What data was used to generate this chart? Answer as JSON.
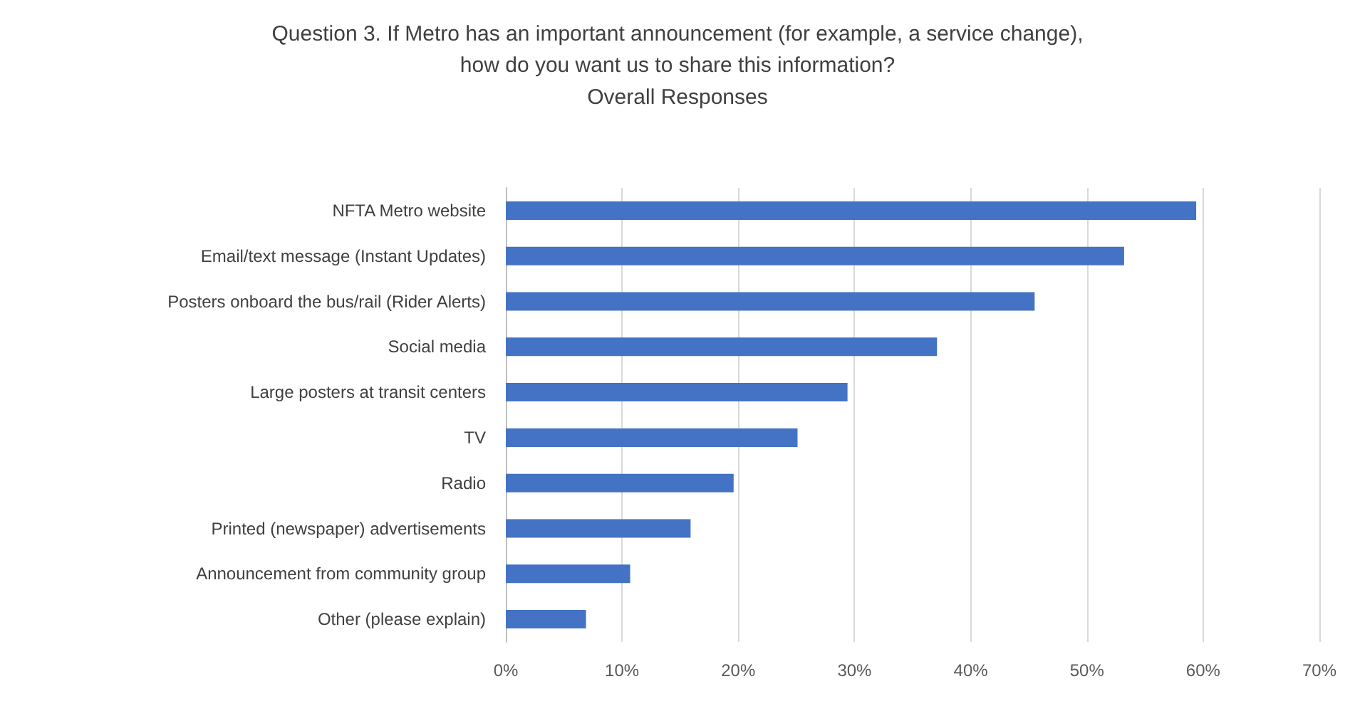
{
  "chart_data": {
    "type": "bar",
    "orientation": "horizontal",
    "title": "Question 3. If Metro has an important announcement (for example, a service change),\nhow do you want us to share this information?",
    "subtitle": "Overall Responses",
    "categories": [
      "NFTA Metro website",
      "Email/text message (Instant Updates)",
      "Posters onboard the bus/rail (Rider Alerts)",
      "Social media",
      "Large posters at transit centers",
      "TV",
      "Radio",
      "Printed (newspaper) advertisements",
      "Announcement from community group",
      "Other (please explain)"
    ],
    "values": [
      59.4,
      53.2,
      45.5,
      37.1,
      29.4,
      25.1,
      19.6,
      15.9,
      10.7,
      6.9
    ],
    "color": "#4472c4",
    "xlim": [
      0,
      70
    ],
    "xticks": [
      {
        "value": 0,
        "label": "0%"
      },
      {
        "value": 10,
        "label": "10%"
      },
      {
        "value": 20,
        "label": "20%"
      },
      {
        "value": 30,
        "label": "30%"
      },
      {
        "value": 40,
        "label": "40%"
      },
      {
        "value": 50,
        "label": "50%"
      },
      {
        "value": 60,
        "label": "60%"
      },
      {
        "value": 70,
        "label": "70%"
      }
    ],
    "grid": "x"
  }
}
